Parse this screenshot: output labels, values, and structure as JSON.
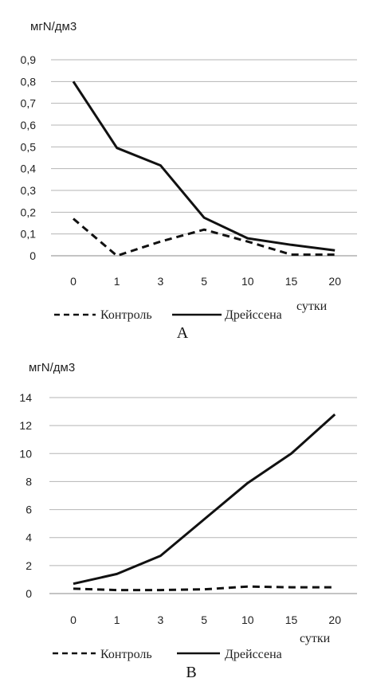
{
  "chart_data": [
    {
      "type": "line",
      "panel_label": "A",
      "ylabel": "мгN/дм3",
      "xlabel": "сутки",
      "categories": [
        "0",
        "1",
        "3",
        "5",
        "10",
        "15",
        "20"
      ],
      "ylim": [
        0,
        0.9
      ],
      "yticks": [
        "0",
        "0,1",
        "0,2",
        "0,3",
        "0,4",
        "0,5",
        "0,6",
        "0,7",
        "0,8",
        "0,9"
      ],
      "grid": true,
      "legend_position": "bottom",
      "series": [
        {
          "name": "Контроль",
          "style": "dashed",
          "values": [
            0.17,
            0.0,
            0.065,
            0.12,
            0.065,
            0.005,
            0.005
          ]
        },
        {
          "name": "Дрейссена",
          "style": "solid",
          "values": [
            0.8,
            0.495,
            0.415,
            0.175,
            0.08,
            0.05,
            0.025
          ]
        }
      ]
    },
    {
      "type": "line",
      "panel_label": "B",
      "ylabel": "мгN/дм3",
      "xlabel": "сутки",
      "categories": [
        "0",
        "1",
        "3",
        "5",
        "10",
        "15",
        "20"
      ],
      "ylim": [
        0,
        14
      ],
      "yticks": [
        "0",
        "2",
        "4",
        "6",
        "8",
        "10",
        "12",
        "14"
      ],
      "grid": true,
      "legend_position": "bottom",
      "series": [
        {
          "name": "Контроль",
          "style": "dashed",
          "values": [
            0.35,
            0.25,
            0.25,
            0.3,
            0.5,
            0.45,
            0.45
          ]
        },
        {
          "name": "Дрейссена",
          "style": "solid",
          "values": [
            0.7,
            1.4,
            2.7,
            5.3,
            7.9,
            10.0,
            12.8
          ]
        }
      ]
    }
  ]
}
